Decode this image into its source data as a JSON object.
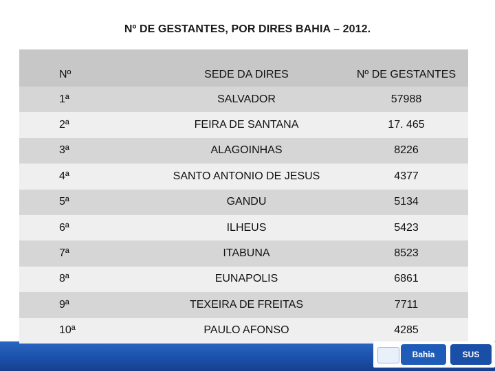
{
  "title": "Nº DE GESTANTES, POR DIRES BAHIA – 2012.",
  "table": {
    "headers": [
      "Nº",
      "SEDE DA DIRES",
      "Nº DE GESTANTES"
    ],
    "rows": [
      [
        "1ª",
        "SALVADOR",
        "57988"
      ],
      [
        "2ª",
        "FEIRA DE SANTANA",
        "17. 465"
      ],
      [
        "3ª",
        "ALAGOINHAS",
        "8226"
      ],
      [
        "4ª",
        "SANTO ANTONIO DE JESUS",
        "4377"
      ],
      [
        "5ª",
        "GANDU",
        "5134"
      ],
      [
        "6ª",
        "ILHEUS",
        "5423"
      ],
      [
        "7ª",
        "ITABUNA",
        "8523"
      ],
      [
        "8ª",
        "EUNAPOLIS",
        "6861"
      ],
      [
        "9ª",
        "TEXEIRA DE FREITAS",
        "7711"
      ],
      [
        "10ª",
        "PAULO AFONSO",
        "4285"
      ]
    ]
  },
  "footer": {
    "logo_bahia": "Bahia",
    "logo_sus": "SUS"
  },
  "colors": {
    "header_bg": "#c7c7c7",
    "row_dark": "#d6d6d6",
    "row_light": "#efefef",
    "footer_blue": "#1a4fa8"
  }
}
